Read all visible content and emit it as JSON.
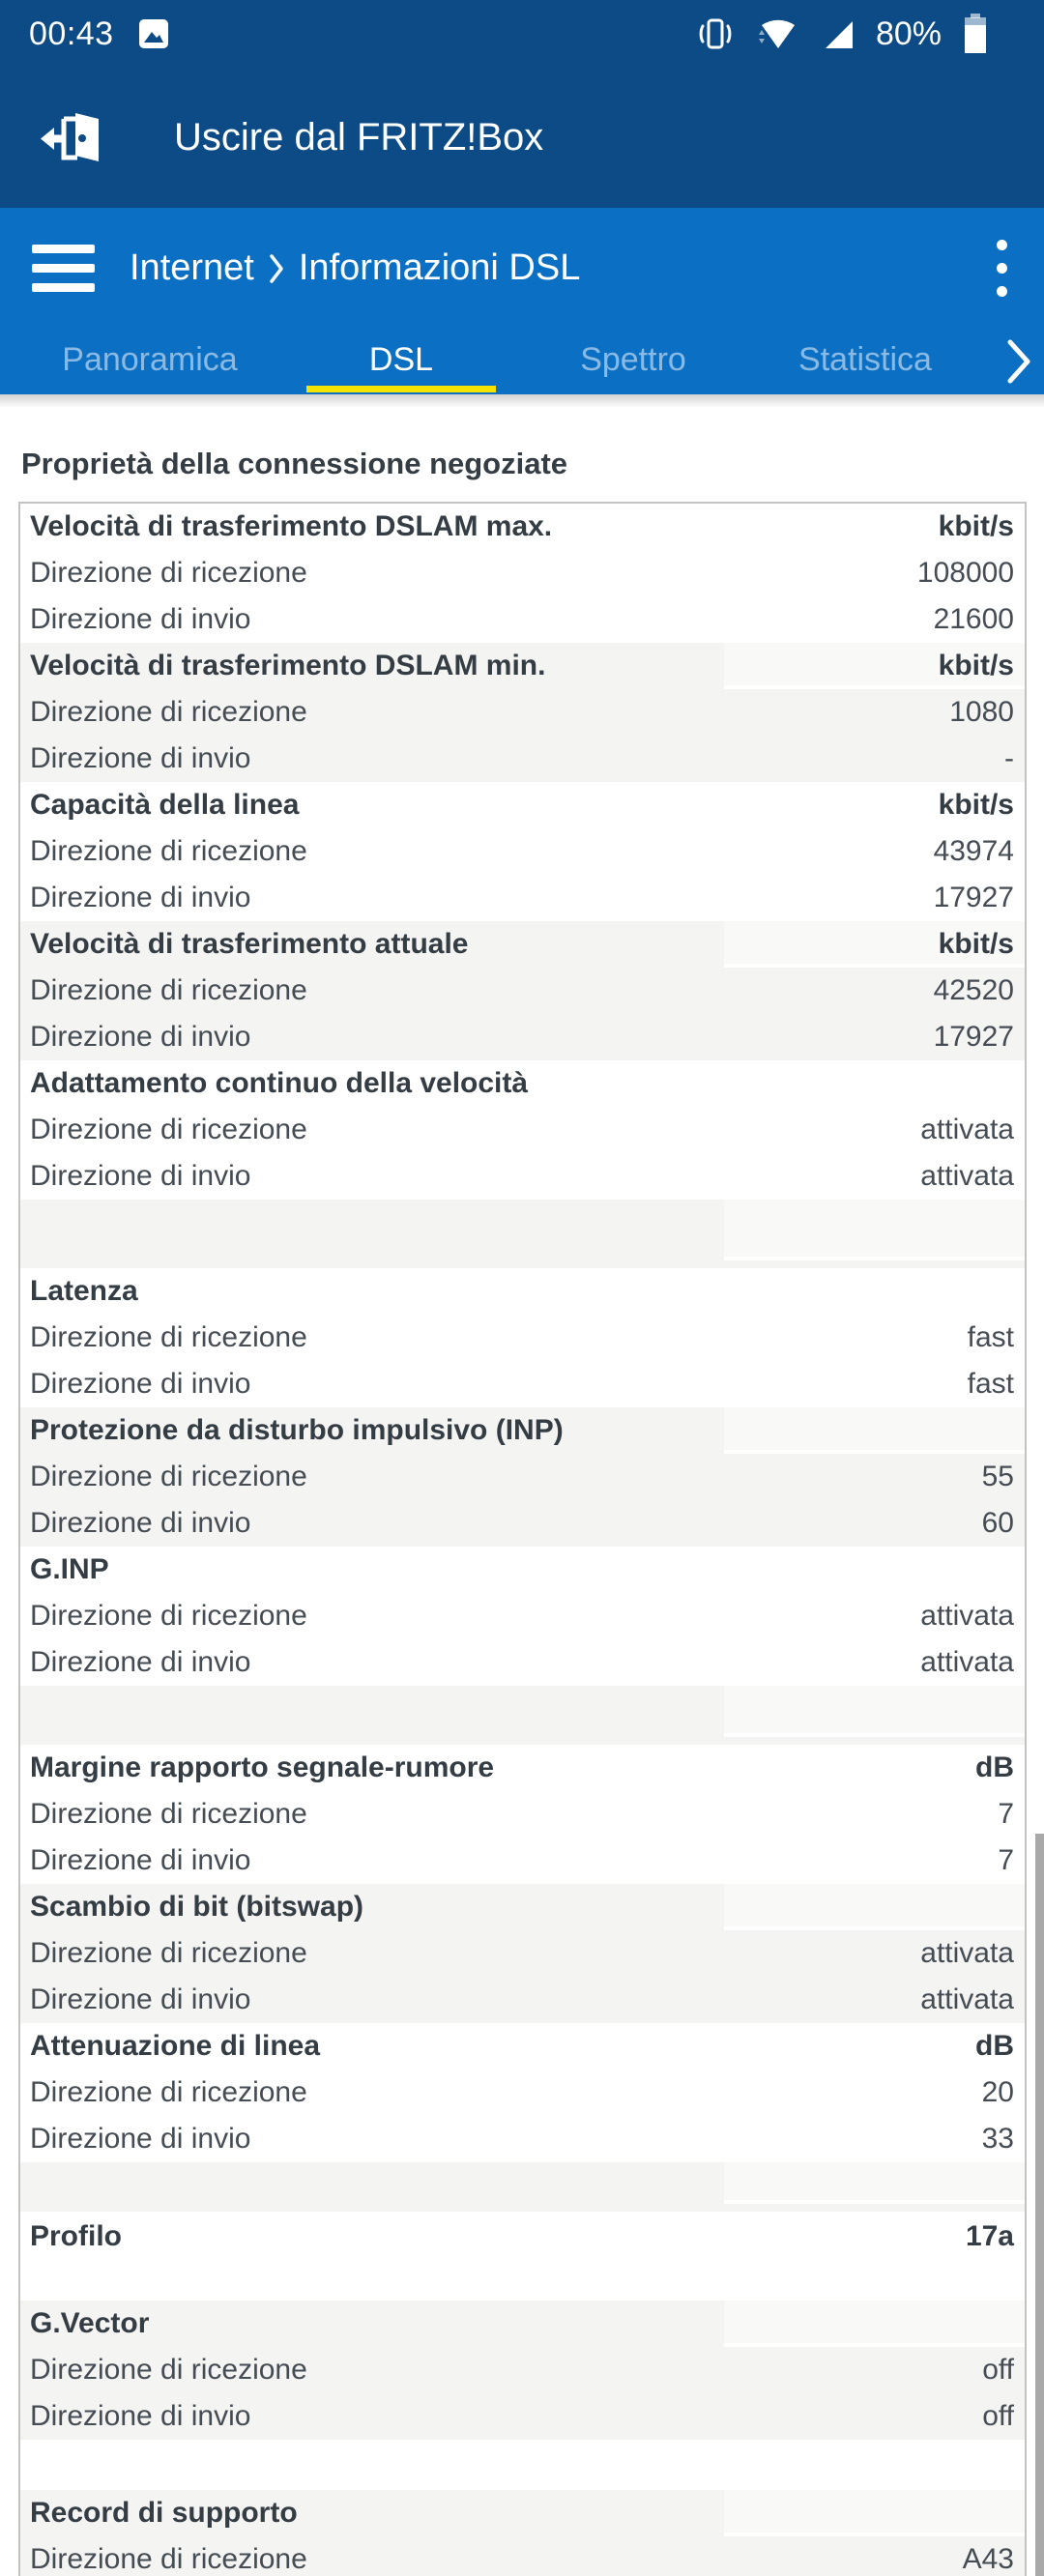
{
  "statusbar": {
    "time": "00:43",
    "battery_percent": "80%",
    "icons": [
      "photo-icon",
      "vibrate-icon",
      "wifi-icon",
      "cell-signal-icon",
      "battery-icon"
    ]
  },
  "appbar": {
    "title": "Uscire dal FRITZ!Box",
    "icon": "logout-door-icon"
  },
  "navbar": {
    "menu_icon": "hamburger-icon",
    "breadcrumb": {
      "section": "Internet",
      "separator": ">",
      "page": "Informazioni DSL"
    },
    "overflow_icon": "kebab-menu-icon"
  },
  "tabs": [
    {
      "label": "Panoramica",
      "active": false
    },
    {
      "label": "DSL",
      "active": true
    },
    {
      "label": "Spettro",
      "active": false
    },
    {
      "label": "Statistica",
      "active": false
    }
  ],
  "tabs_more_icon": "chevron-right-icon",
  "section_title": "Proprietà della connessione negoziate",
  "colors": {
    "statusbar_appbar_blue": "#0c4b85",
    "nav_tab_blue": "#0b70c4",
    "active_tab_underline_yellow": "#f5e400",
    "row_alt_gray": "#f4f4f2",
    "table_border": "#c3c3c1",
    "text_dark": "#343c44",
    "scrollbar_gray": "#a9a9a9"
  },
  "table": {
    "groups": [
      {
        "shade": "white",
        "rows": [
          {
            "label": "Velocità di trasferimento DSLAM max.",
            "value": "kbit/s",
            "header": true
          },
          {
            "label": "Direzione di ricezione",
            "value": "108000"
          },
          {
            "label": "Direzione di invio",
            "value": "21600"
          }
        ]
      },
      {
        "shade": "gray",
        "rows": [
          {
            "label": "Velocità di trasferimento DSLAM min.",
            "value": "kbit/s",
            "header": true
          },
          {
            "label": "Direzione di ricezione",
            "value": "1080"
          },
          {
            "label": "Direzione di invio",
            "value": "-"
          }
        ]
      },
      {
        "shade": "white",
        "rows": [
          {
            "label": "Capacità della linea",
            "value": "kbit/s",
            "header": true
          },
          {
            "label": "Direzione di ricezione",
            "value": "43974"
          },
          {
            "label": "Direzione di invio",
            "value": "17927"
          }
        ]
      },
      {
        "shade": "gray",
        "rows": [
          {
            "label": "Velocità di trasferimento attuale",
            "value": "kbit/s",
            "header": true
          },
          {
            "label": "Direzione di ricezione",
            "value": "42520"
          },
          {
            "label": "Direzione di invio",
            "value": "17927"
          }
        ]
      },
      {
        "shade": "white",
        "rows": [
          {
            "label": "Adattamento continuo della velocità",
            "value": "",
            "header": true
          },
          {
            "label": "Direzione di ricezione",
            "value": "attivata"
          },
          {
            "label": "Direzione di invio",
            "value": "attivata"
          }
        ]
      },
      {
        "type": "spacer",
        "shade": "gray",
        "height": 71
      },
      {
        "shade": "white",
        "rows": [
          {
            "label": "Latenza",
            "value": "",
            "header": true
          },
          {
            "label": "Direzione di ricezione",
            "value": "fast"
          },
          {
            "label": "Direzione di invio",
            "value": "fast"
          }
        ]
      },
      {
        "shade": "gray",
        "rows": [
          {
            "label": "Protezione da disturbo impulsivo (INP)",
            "value": "",
            "header": true
          },
          {
            "label": "Direzione di ricezione",
            "value": "55"
          },
          {
            "label": "Direzione di invio",
            "value": "60"
          }
        ]
      },
      {
        "shade": "white",
        "rows": [
          {
            "label": "G.INP",
            "value": "",
            "header": true
          },
          {
            "label": "Direzione di ricezione",
            "value": "attivata"
          },
          {
            "label": "Direzione di invio",
            "value": "attivata"
          }
        ]
      },
      {
        "type": "spacer",
        "shade": "gray",
        "height": 61
      },
      {
        "shade": "white",
        "rows": [
          {
            "label": "Margine rapporto segnale-rumore",
            "value": "dB",
            "header": true
          },
          {
            "label": "Direzione di ricezione",
            "value": "7"
          },
          {
            "label": "Direzione di invio",
            "value": "7"
          }
        ]
      },
      {
        "shade": "gray",
        "rows": [
          {
            "label": "Scambio di bit (bitswap)",
            "value": "",
            "header": true
          },
          {
            "label": "Direzione di ricezione",
            "value": "attivata"
          },
          {
            "label": "Direzione di invio",
            "value": "attivata"
          }
        ]
      },
      {
        "shade": "white",
        "rows": [
          {
            "label": "Attenuazione di linea",
            "value": "dB",
            "header": true
          },
          {
            "label": "Direzione di ricezione",
            "value": "20"
          },
          {
            "label": "Direzione di invio",
            "value": "33"
          }
        ]
      },
      {
        "type": "spacer",
        "shade": "gray",
        "height": 51
      },
      {
        "shade": "white",
        "rows": [
          {
            "label": "Profilo",
            "value": "17a",
            "header": true,
            "tall": true
          }
        ]
      },
      {
        "shade": "gray",
        "rows": [
          {
            "label": "G.Vector",
            "value": "",
            "header": true
          },
          {
            "label": "Direzione di ricezione",
            "value": "off"
          },
          {
            "label": "Direzione di invio",
            "value": "off"
          }
        ]
      },
      {
        "type": "spacer",
        "shade": "white",
        "height": 52
      },
      {
        "shade": "gray",
        "rows": [
          {
            "label": "Record di supporto",
            "value": "",
            "header": true
          },
          {
            "label": "Direzione di ricezione",
            "value": "A43"
          }
        ]
      }
    ]
  }
}
